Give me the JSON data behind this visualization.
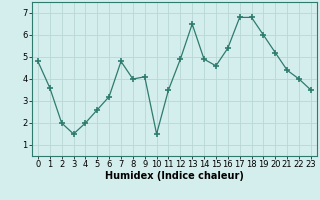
{
  "x": [
    0,
    1,
    2,
    3,
    4,
    5,
    6,
    7,
    8,
    9,
    10,
    11,
    12,
    13,
    14,
    15,
    16,
    17,
    18,
    19,
    20,
    21,
    22,
    23
  ],
  "y": [
    4.8,
    3.6,
    2.0,
    1.5,
    2.0,
    2.6,
    3.2,
    4.8,
    4.0,
    4.1,
    1.5,
    3.5,
    4.9,
    6.5,
    4.9,
    4.6,
    5.4,
    6.8,
    6.8,
    6.0,
    5.2,
    4.4,
    4.0,
    3.5
  ],
  "line_color": "#2e7b6e",
  "marker": "+",
  "marker_size": 4,
  "bg_color": "#d4eeed",
  "grid_color": "#b8d8d5",
  "xlabel": "Humidex (Indice chaleur)",
  "xlabel_fontsize": 7,
  "tick_fontsize": 6,
  "ylim": [
    0.5,
    7.5
  ],
  "xlim": [
    -0.5,
    23.5
  ],
  "yticks": [
    1,
    2,
    3,
    4,
    5,
    6,
    7
  ],
  "xticks": [
    0,
    1,
    2,
    3,
    4,
    5,
    6,
    7,
    8,
    9,
    10,
    11,
    12,
    13,
    14,
    15,
    16,
    17,
    18,
    19,
    20,
    21,
    22,
    23
  ]
}
